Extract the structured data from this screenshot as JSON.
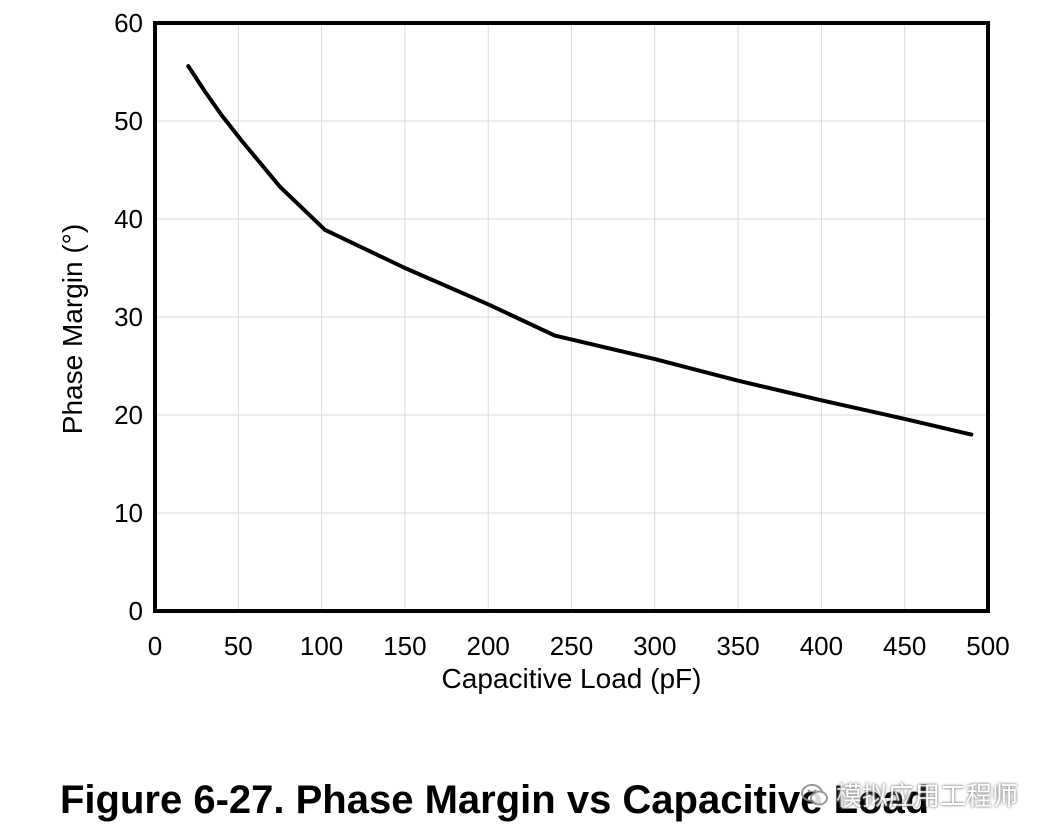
{
  "chart_data": {
    "type": "line",
    "title": "Figure 6-27. Phase Margin vs Capacitive Load",
    "xlabel": "Capacitive Load (pF)",
    "ylabel": "Phase Margin (°)",
    "xlim": [
      0,
      500
    ],
    "ylim": [
      0,
      60
    ],
    "xticks": [
      0,
      50,
      100,
      150,
      200,
      250,
      300,
      350,
      400,
      450,
      500
    ],
    "yticks": [
      0,
      10,
      20,
      30,
      40,
      50,
      60
    ],
    "grid": true,
    "series": [
      {
        "name": "Phase Margin",
        "x": [
          20,
          30,
          40,
          52,
          75,
          102,
          150,
          200,
          240,
          300,
          350,
          400,
          450,
          490
        ],
        "y": [
          55.6,
          53.0,
          50.6,
          48.0,
          43.3,
          38.9,
          35.0,
          31.3,
          28.1,
          25.7,
          23.5,
          21.5,
          19.6,
          18.0
        ]
      }
    ]
  },
  "watermark": {
    "text": "模拟应用工程师",
    "icon": "wechat-icon"
  },
  "colors": {
    "line": "#000000",
    "grid": "#d9d9d9",
    "background": "#ffffff"
  }
}
